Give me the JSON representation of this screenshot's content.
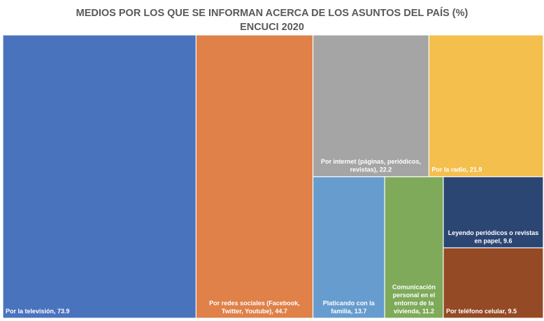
{
  "chart_data": {
    "type": "treemap",
    "title": "MEDIOS POR LOS QUE SE INFORMAN ACERCA DE LOS ASUNTOS DEL PAÍS (%)",
    "subtitle": "ENCUCI 2020",
    "items": [
      {
        "name": "Por la televisión",
        "value": 73.9,
        "display": "73.9",
        "color": "#4a73be",
        "label_lines": [
          "Por la televisión,  73.9"
        ]
      },
      {
        "name": "Por redes sociales (Facebook, Twitter, Youtube)",
        "value": 44.7,
        "display": "44.7",
        "color": "#df8149",
        "label_lines": [
          "Por redes sociales (Facebook,",
          "Twitter, Youtube),  44.7"
        ]
      },
      {
        "name": "Por internet (páginas, periódicos, revistas)",
        "value": 22.2,
        "display": "22.2",
        "color": "#a5a5a5",
        "label_lines": [
          "Por internet (páginas, periódicos,",
          "revistas),  22.2"
        ]
      },
      {
        "name": "Por la radio",
        "value": 21.9,
        "display": "21.9",
        "color": "#f4bf4d",
        "label_lines": [
          "Por la radio,  21.9"
        ]
      },
      {
        "name": "Platicando con la familia",
        "value": 13.7,
        "display": "13.7",
        "color": "#679cce",
        "label_lines": [
          "Platicando con la",
          "familia,  13.7"
        ]
      },
      {
        "name": "Comunicación personal en el entorno de la vivienda",
        "value": 11.2,
        "display": "11.2",
        "color": "#7eaa59",
        "label_lines": [
          "Comunicación",
          "personal en el",
          "entorno de la",
          "vivienda,  11.2"
        ]
      },
      {
        "name": "Leyendo periódicos o revistas en papel",
        "value": 9.6,
        "display": "9.6",
        "color": "#2c4673",
        "label_lines": [
          "Leyendo periódicos o revistas",
          "en papel,  9.6"
        ]
      },
      {
        "name": "Por teléfono celular",
        "value": 9.5,
        "display": "9.5",
        "color": "#944a25",
        "label_lines": [
          "Por  teléfono celular,  9.5"
        ]
      }
    ]
  }
}
